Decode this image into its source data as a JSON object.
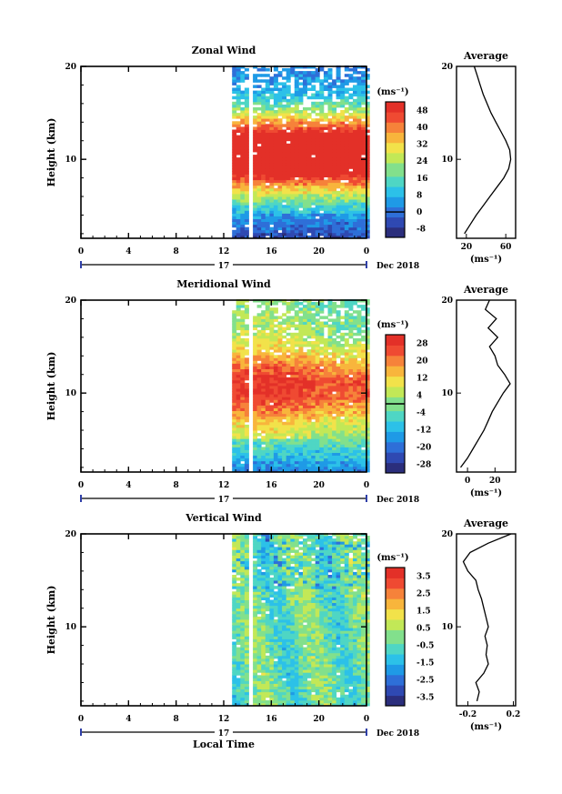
{
  "xaxis": {
    "ticks": [
      "0",
      "4",
      "8",
      "12",
      "16",
      "20",
      "0"
    ],
    "day_label": "17",
    "date_label": "Dec 2018",
    "xlabel": "Local Time"
  },
  "panels": [
    {
      "title": "Zonal Wind",
      "ylabel": "Height (km)",
      "yticks": [
        "10",
        "20"
      ],
      "cb_unit": "(ms⁻¹)",
      "avg_title": "Average",
      "avg_unit": "(ms⁻¹)",
      "avg_xticks": [
        "20",
        "60"
      ]
    },
    {
      "title": "Meridional Wind",
      "ylabel": "Height (km)",
      "yticks": [
        "10",
        "20"
      ],
      "cb_unit": "(ms⁻¹)",
      "avg_title": "Average",
      "avg_unit": "(ms⁻¹)",
      "avg_xticks": [
        "0",
        "20"
      ]
    },
    {
      "title": "Vertical Wind",
      "ylabel": "Height (km)",
      "yticks": [
        "10",
        "20"
      ],
      "cb_unit": "(ms⁻¹)",
      "avg_title": "Average",
      "avg_unit": "(ms⁻¹)",
      "avg_xticks": [
        "-0.2",
        "0.2"
      ]
    }
  ],
  "chart_data": [
    {
      "type": "heatmap",
      "title": "Zonal Wind",
      "ylabel": "Height (km)",
      "xlabel": "Local Time",
      "xlim": [
        0,
        24
      ],
      "ylim": [
        1.5,
        20
      ],
      "data_start_hour": 12.7,
      "colorbar": {
        "unit": "(ms⁻¹)",
        "ticks": [
          48,
          40,
          32,
          24,
          16,
          8,
          0,
          -8
        ],
        "range": [
          -12,
          52
        ],
        "zero_line": 0
      },
      "average_profile": {
        "title": "Average",
        "unit": "(ms⁻¹)",
        "xticks": [
          20,
          60
        ],
        "xlim": [
          10,
          70
        ],
        "heights": [
          2,
          3,
          4,
          5,
          6,
          7,
          8,
          9,
          10,
          11,
          12,
          13,
          14,
          15,
          16,
          17,
          18,
          19,
          20
        ],
        "values": [
          18,
          24,
          30,
          37,
          44,
          51,
          58,
          63,
          65,
          64,
          60,
          55,
          50,
          45,
          41,
          37,
          34,
          31,
          28
        ]
      }
    },
    {
      "type": "heatmap",
      "title": "Meridional Wind",
      "ylabel": "Height (km)",
      "xlabel": "Local Time",
      "xlim": [
        0,
        24
      ],
      "ylim": [
        1.5,
        20
      ],
      "data_start_hour": 12.7,
      "colorbar": {
        "unit": "(ms⁻¹)",
        "ticks": [
          28,
          20,
          12,
          4,
          -4,
          -12,
          -20,
          -28
        ],
        "range": [
          -32,
          32
        ],
        "zero_line": 0
      },
      "average_profile": {
        "title": "Average",
        "unit": "(ms⁻¹)",
        "xticks": [
          0,
          20
        ],
        "xlim": [
          -8,
          35
        ],
        "heights": [
          2,
          3,
          4,
          5,
          6,
          7,
          8,
          9,
          10,
          11,
          12,
          13,
          14,
          15,
          16,
          17,
          18,
          19,
          20
        ],
        "values": [
          -5,
          0,
          4,
          8,
          12,
          15,
          18,
          22,
          26,
          31,
          27,
          22,
          20,
          16,
          22,
          15,
          21,
          13,
          16
        ]
      }
    },
    {
      "type": "heatmap",
      "title": "Vertical Wind",
      "ylabel": "Height (km)",
      "xlabel": "Local Time",
      "xlim": [
        0,
        24
      ],
      "ylim": [
        1.5,
        20
      ],
      "data_start_hour": 12.7,
      "colorbar": {
        "unit": "(ms⁻¹)",
        "ticks": [
          3.5,
          2.5,
          1.5,
          0.5,
          -0.5,
          -1.5,
          -2.5,
          -3.5
        ],
        "range": [
          -4,
          4
        ],
        "zero_line": null
      },
      "average_profile": {
        "title": "Average",
        "unit": "(ms⁻¹)",
        "xticks": [
          -0.2,
          0.2
        ],
        "xlim": [
          -0.3,
          0.22
        ],
        "heights": [
          2,
          3,
          4,
          5,
          6,
          7,
          8,
          9,
          10,
          11,
          12,
          13,
          14,
          15,
          16,
          17,
          18,
          19,
          20
        ],
        "values": [
          -0.12,
          -0.1,
          -0.13,
          -0.06,
          -0.02,
          -0.04,
          -0.03,
          -0.05,
          -0.02,
          -0.04,
          -0.06,
          -0.08,
          -0.11,
          -0.13,
          -0.2,
          -0.24,
          -0.18,
          -0.02,
          0.18
        ]
      }
    }
  ]
}
